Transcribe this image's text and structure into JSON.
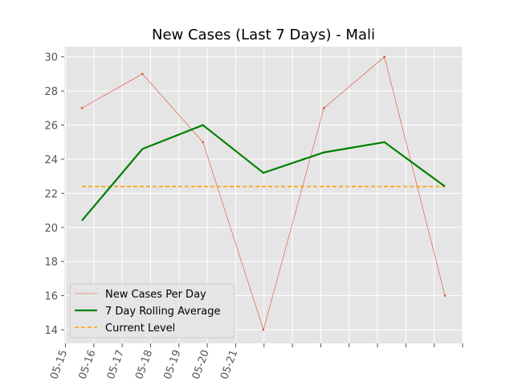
{
  "chart_data": {
    "type": "line",
    "title": "New Cases (Last 7 Days) - Mali",
    "xlabel": "",
    "ylabel": "",
    "x": [
      "05-15",
      "05-16",
      "05-17",
      "05-18",
      "05-19",
      "05-20",
      "05-21"
    ],
    "xtick_labels": [
      "05-15",
      "05-16",
      "05-17",
      "05-18",
      "05-19",
      "05-20",
      "05-21"
    ],
    "ylim": [
      13.2,
      30.6
    ],
    "yticks": [
      14,
      16,
      18,
      20,
      22,
      24,
      26,
      28,
      30
    ],
    "grid": true,
    "legend_position": "lower-left",
    "series": [
      {
        "name": "New Cases Per Day",
        "values": [
          27,
          29,
          25,
          14,
          27,
          30,
          16
        ],
        "color": "#e24a33",
        "style": "thin-line-markers"
      },
      {
        "name": "7 Day Rolling Average",
        "values": [
          20.4,
          24.6,
          26,
          23.2,
          24.4,
          25,
          22.4
        ],
        "color": "#008000",
        "style": "thick-line"
      },
      {
        "name": "Current Level",
        "values": [
          22.4,
          22.4,
          22.4,
          22.4,
          22.4,
          22.4,
          22.4
        ],
        "color": "#ffa500",
        "style": "dashed"
      }
    ]
  }
}
